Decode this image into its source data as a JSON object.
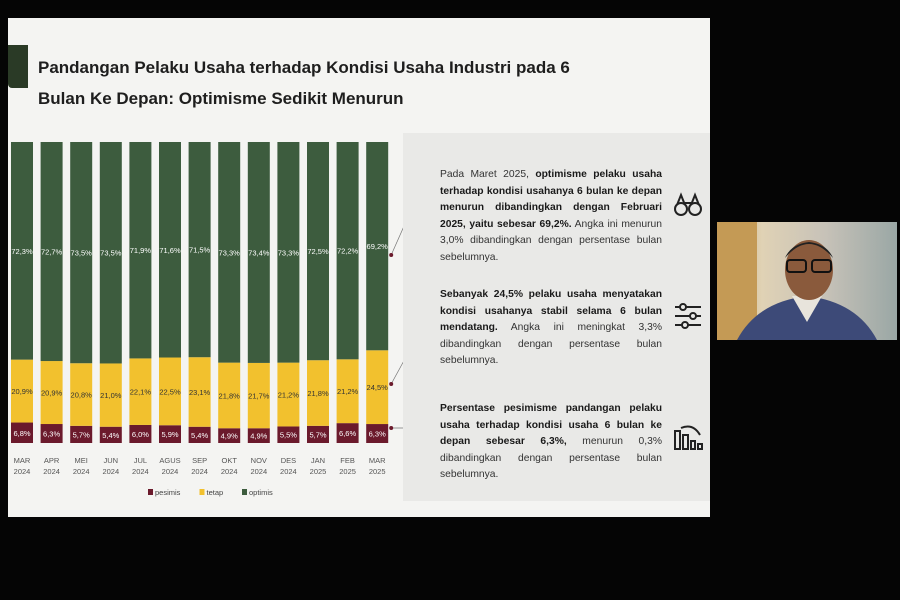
{
  "slide": {
    "title": "Pandangan Pelaku Usaha terhadap Kondisi Usaha Industri pada 6 Bulan Ke Depan: Optimisme Sedikit Menurun",
    "notes": [
      {
        "bold_prefix": "",
        "plain_prefix": "Pada Maret 2025, ",
        "bold": "optimisme pelaku usaha terhadap kondisi usahanya 6 bulan ke depan menurun dibandingkan dengan Februari 2025, yaitu sebesar 69,2%.",
        "plain": " Angka ini menurun 3,0% dibandingkan dengan persentase bulan sebelumnya.",
        "icon": "binoculars-icon"
      },
      {
        "plain_prefix": "",
        "bold": "Sebanyak 24,5% pelaku usaha menyatakan kondisi usahanya stabil selama 6 bulan mendatang.",
        "plain": " Angka ini meningkat 3,3% dibandingkan dengan persentase bulan sebelumnya.",
        "icon": "sliders-icon"
      },
      {
        "plain_prefix": "",
        "bold": "Persentase pesimisme pandangan pelaku usaha terhadap kondisi usaha 6 bulan ke depan sebesar 6,3%,",
        "plain": " menurun 0,3% dibandingkan dengan persentase bulan sebelumnya.",
        "icon": "declining-bars-icon"
      }
    ]
  },
  "colors": {
    "pesimis": "#6b1a2c",
    "tetap": "#f2c12e",
    "optimis": "#3d5c3e",
    "accent": "#2a3a26"
  },
  "chart_data": {
    "type": "bar",
    "stacked": true,
    "categories": [
      "MAR 2024",
      "APR 2024",
      "MEI 2024",
      "JUN 2024",
      "JUL 2024",
      "AGUS 2024",
      "SEP 2024",
      "OKT 2024",
      "NOV 2024",
      "DES 2024",
      "JAN 2025",
      "FEB 2025",
      "MAR 2025"
    ],
    "series": [
      {
        "name": "pesimis",
        "values": [
          6.8,
          6.3,
          5.7,
          5.4,
          6.0,
          5.9,
          5.4,
          4.9,
          4.9,
          5.5,
          5.7,
          6.6,
          6.3
        ],
        "labels": [
          "6,8%",
          "6,3%",
          "5,7%",
          "5,4%",
          "6,0%",
          "5,9%",
          "5,4%",
          "4,9%",
          "4,9%",
          "5,5%",
          "5,7%",
          "6,6%",
          "6,3%"
        ]
      },
      {
        "name": "tetap",
        "values": [
          20.9,
          20.9,
          20.8,
          21.0,
          22.1,
          22.5,
          23.1,
          21.8,
          21.7,
          21.2,
          21.8,
          21.2,
          24.5
        ],
        "labels": [
          "20,9%",
          "20,9%",
          "20,8%",
          "21,0%",
          "22,1%",
          "22,5%",
          "23,1%",
          "21,8%",
          "21,7%",
          "21,2%",
          "21,8%",
          "21,2%",
          "24,5%"
        ]
      },
      {
        "name": "optimis",
        "values": [
          72.3,
          72.7,
          73.5,
          73.5,
          71.9,
          71.6,
          71.5,
          73.3,
          73.4,
          73.3,
          72.5,
          72.2,
          69.2
        ],
        "labels": [
          "72,3%",
          "72,7%",
          "73,5%",
          "73,5%",
          "71,9%",
          "71,6%",
          "71,5%",
          "73,3%",
          "73,4%",
          "73,3%",
          "72,5%",
          "72,2%",
          "69,2%"
        ]
      }
    ],
    "legend_position": "bottom",
    "grid": false
  }
}
